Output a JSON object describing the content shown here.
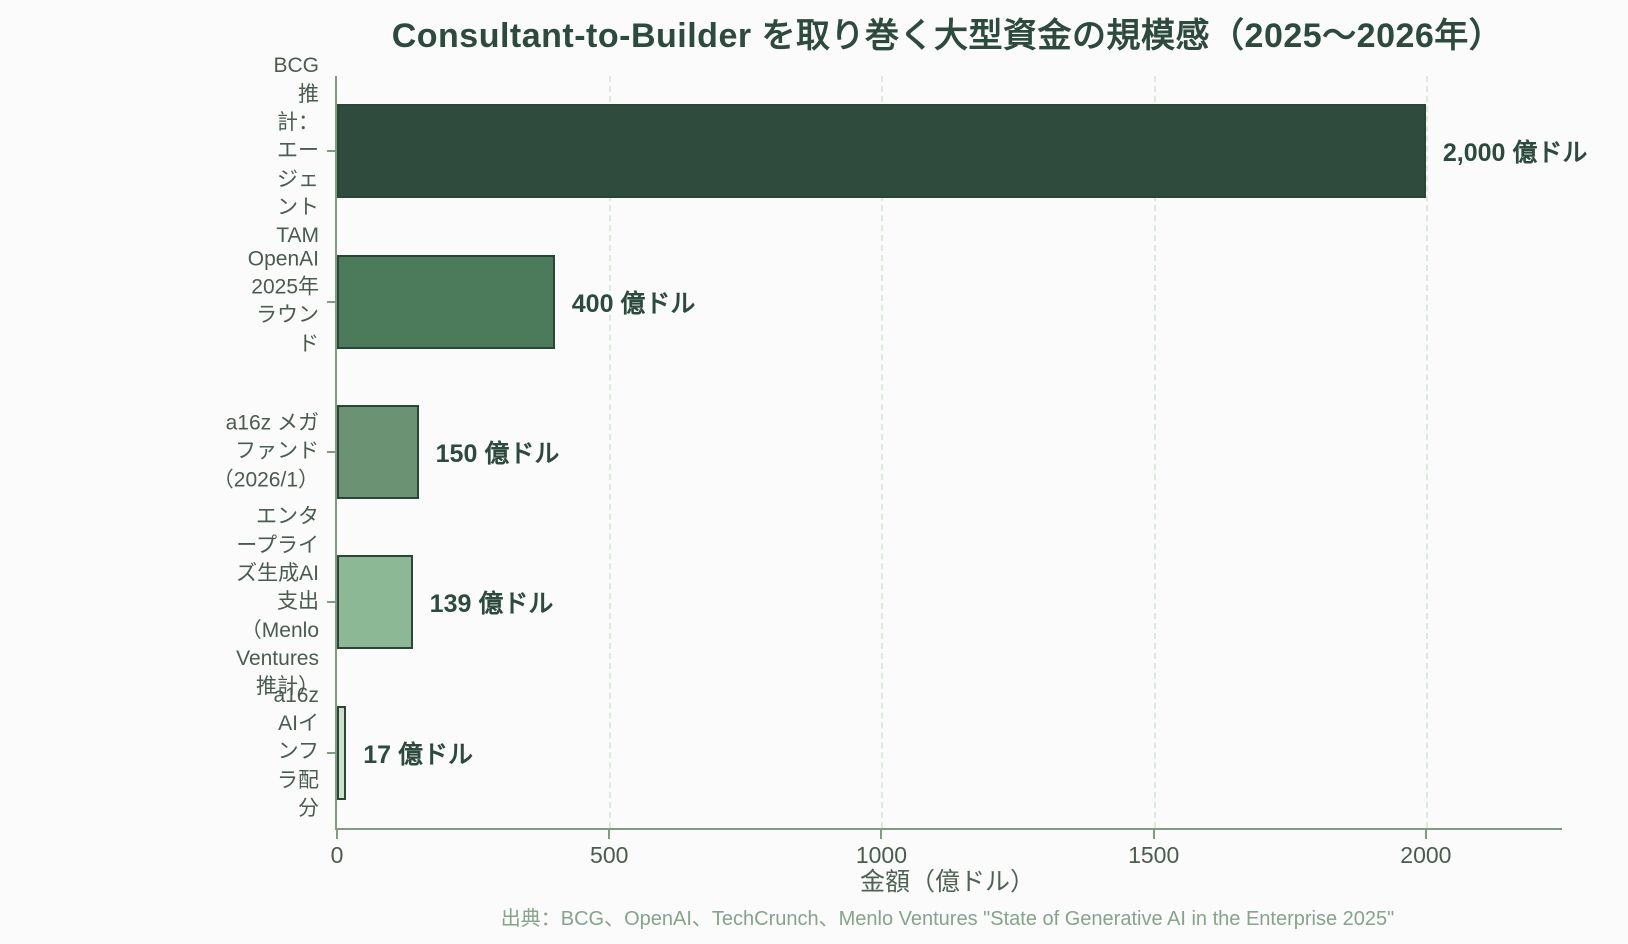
{
  "title": "Consultant-to-Builder を取り巻く大型資金の規模感（2025〜2026年）",
  "chart_data": {
    "type": "bar",
    "orientation": "horizontal",
    "categories": [
      "BCG推計：エージェントTAM",
      "OpenAI 2025年ラウンド",
      "a16z メガファンド（2026/1）",
      "エンタープライズ生成AI支出\n（Menlo Ventures 推計）",
      "a16z AIインフラ配分"
    ],
    "values": [
      2000,
      400,
      150,
      139,
      17
    ],
    "value_labels": [
      "2,000 億ドル",
      "400 億ドル",
      "150 億ドル",
      "139 億ドル",
      "17 億ドル"
    ],
    "bar_colors": [
      "#2e4b3e",
      "#4c7b5b",
      "#6c9274",
      "#8cb896",
      "#cfdfcc"
    ],
    "bar_border_color": "#2b4537",
    "xlabel": "金額（億ドル）",
    "x_ticks": [
      "0",
      "500",
      "1000",
      "1500",
      "2000"
    ],
    "x_tick_values": [
      0,
      500,
      1000,
      1500,
      2000
    ],
    "xlim": [
      0,
      2250
    ],
    "grid": "vertical-dashed",
    "legend": "none",
    "source": "出典：BCG、OpenAI、TechCrunch、Menlo Ventures \"State of Generative AI in the Enterprise 2025\""
  },
  "colors": {
    "background": "#fafbfa",
    "title_text": "#2d4a3e",
    "category_text": "#4a5c50",
    "value_text": "#2d4a3e",
    "tick_text": "#4a5c50",
    "xlabel_text": "#4f6355",
    "source_text": "#86a38b",
    "axis_line": "#7f9d82",
    "gridline": "#dde9dd"
  }
}
